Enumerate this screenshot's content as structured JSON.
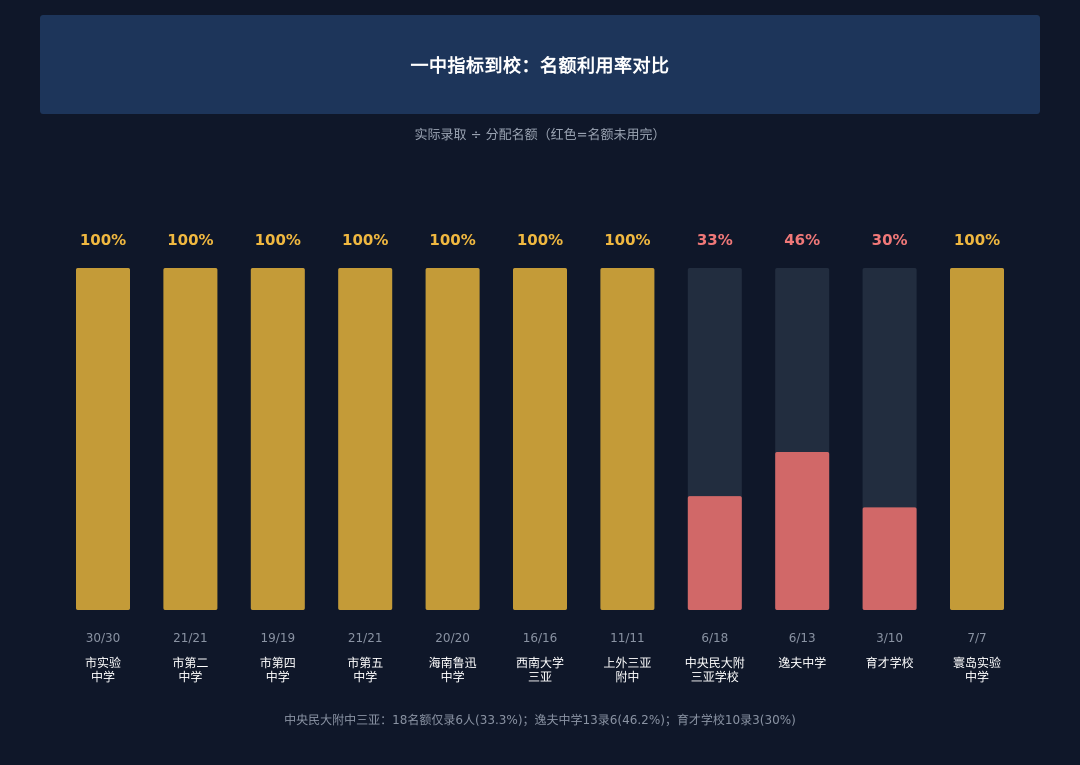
{
  "header": {
    "title": "一中指标到校：名额利用率对比",
    "subtitle": "实际录取 ÷ 分配名额（红色=名额未用完）"
  },
  "footnote": "中央民大附中三亚：18名额仅录6人(33.3%)；逸夫中学13录6(46.2%)；育才学校10录3(30%)",
  "colors": {
    "full": "#c49b38",
    "partial": "#d16868",
    "track": "#222d3f",
    "full_label": "#f0b840",
    "partial_label": "#f07878",
    "tick_text": "#8a93a3",
    "name_text": "#ffffff"
  },
  "chart_data": {
    "type": "bar",
    "ylim": [
      0,
      100
    ],
    "categories": [
      {
        "name": [
          "市实验",
          "中学"
        ],
        "admitted": 30,
        "quota": 30,
        "pct_label": "100%",
        "ratio_label": "30/30",
        "rate": 100
      },
      {
        "name": [
          "市第二",
          "中学"
        ],
        "admitted": 21,
        "quota": 21,
        "pct_label": "100%",
        "ratio_label": "21/21",
        "rate": 100
      },
      {
        "name": [
          "市第四",
          "中学"
        ],
        "admitted": 19,
        "quota": 19,
        "pct_label": "100%",
        "ratio_label": "19/19",
        "rate": 100
      },
      {
        "name": [
          "市第五",
          "中学"
        ],
        "admitted": 21,
        "quota": 21,
        "pct_label": "100%",
        "ratio_label": "21/21",
        "rate": 100
      },
      {
        "name": [
          "海南鲁迅",
          "中学"
        ],
        "admitted": 20,
        "quota": 20,
        "pct_label": "100%",
        "ratio_label": "20/20",
        "rate": 100
      },
      {
        "name": [
          "西南大学",
          "三亚"
        ],
        "admitted": 16,
        "quota": 16,
        "pct_label": "100%",
        "ratio_label": "16/16",
        "rate": 100
      },
      {
        "name": [
          "上外三亚",
          "附中"
        ],
        "admitted": 11,
        "quota": 11,
        "pct_label": "100%",
        "ratio_label": "11/11",
        "rate": 100
      },
      {
        "name": [
          "中央民大附",
          "三亚学校"
        ],
        "admitted": 6,
        "quota": 18,
        "pct_label": "33%",
        "ratio_label": "6/18",
        "rate": 33.3
      },
      {
        "name": [
          "逸夫中学"
        ],
        "admitted": 6,
        "quota": 13,
        "pct_label": "46%",
        "ratio_label": "6/13",
        "rate": 46.2
      },
      {
        "name": [
          "育才学校"
        ],
        "admitted": 3,
        "quota": 10,
        "pct_label": "30%",
        "ratio_label": "3/10",
        "rate": 30
      },
      {
        "name": [
          "寰岛实验",
          "中学"
        ],
        "admitted": 7,
        "quota": 7,
        "pct_label": "100%",
        "ratio_label": "7/7",
        "rate": 100
      }
    ]
  }
}
